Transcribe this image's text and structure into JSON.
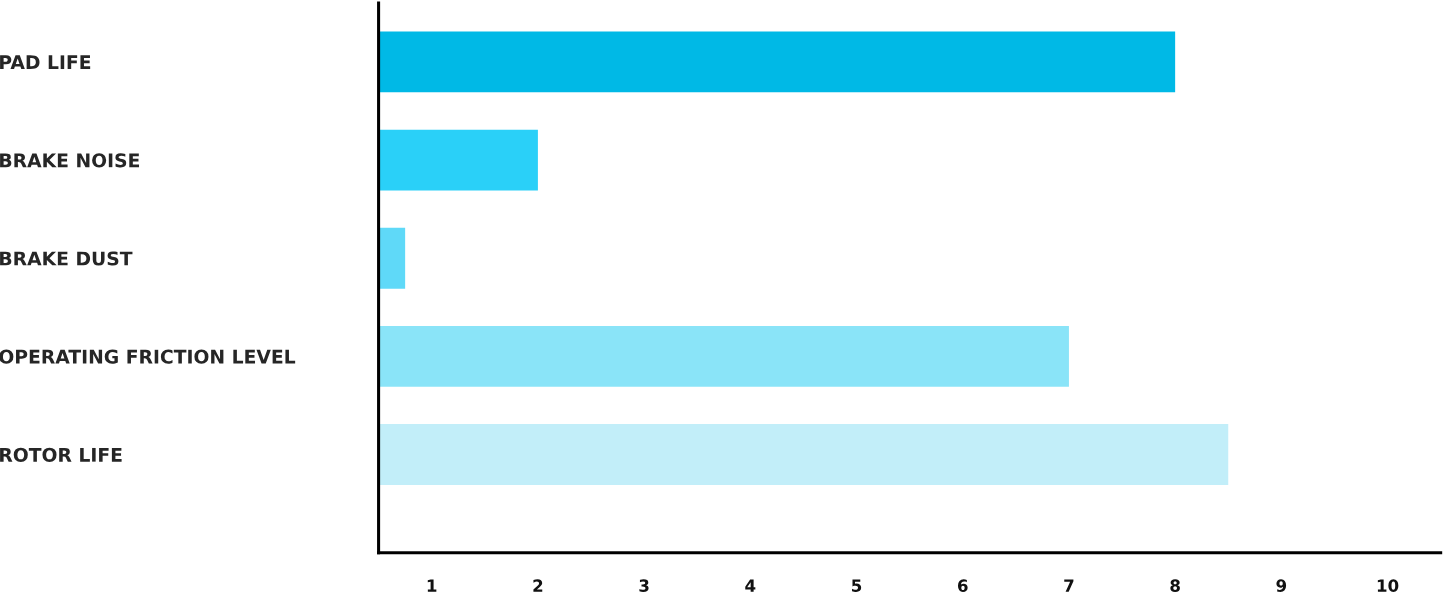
{
  "chart_data": {
    "type": "bar",
    "orientation": "horizontal",
    "categories": [
      "PAD LIFE",
      "BRAKE NOISE",
      "BRAKE DUST",
      "OPERATING FRICTION LEVEL",
      "ROTOR LIFE"
    ],
    "values": [
      8,
      2,
      0.75,
      7,
      8.5
    ],
    "colors": [
      "#00b9e6",
      "#2ad0f8",
      "#5fd9f8",
      "#8ae4f8",
      "#c2eef9"
    ],
    "xlim": [
      0.5,
      10.5
    ],
    "xticks": [
      1,
      2,
      3,
      4,
      5,
      6,
      7,
      8,
      9,
      10
    ],
    "grid": false
  }
}
